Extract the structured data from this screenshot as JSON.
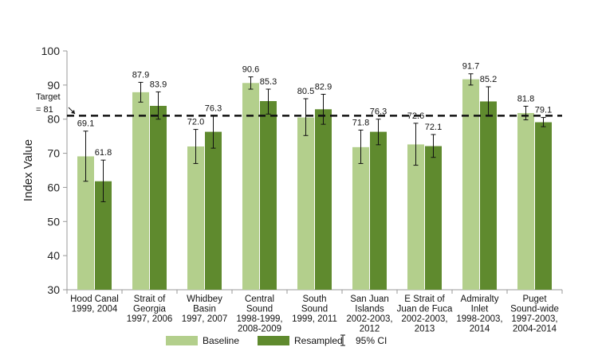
{
  "chart_data": {
    "type": "bar",
    "ylabel": "Index Value",
    "ylim": [
      30,
      100
    ],
    "yticks": [
      30,
      40,
      50,
      60,
      70,
      80,
      90,
      100
    ],
    "categories": [
      [
        "Hood Canal",
        "1999, 2004"
      ],
      [
        "Strait of",
        "Georgia",
        "1997, 2006"
      ],
      [
        "Whidbey",
        "Basin",
        "1997, 2007"
      ],
      [
        "Central",
        "Sound",
        "1998-1999,",
        "2008-2009"
      ],
      [
        "South",
        "Sound",
        "1999, 2011"
      ],
      [
        "San Juan",
        "Islands",
        "2002-2003,",
        "2012"
      ],
      [
        "E Strait of",
        "Juan de Fuca",
        "2002-2003,",
        "2013"
      ],
      [
        "Admiralty",
        "Inlet",
        "1998-2003,",
        "2014"
      ],
      [
        "Puget",
        "Sound-wide",
        "1997-2003,",
        "2004-2014"
      ]
    ],
    "series": [
      {
        "name": "Baseline",
        "color": "#b3cf8c",
        "values": [
          69.1,
          87.9,
          72.0,
          90.6,
          80.5,
          71.8,
          72.6,
          91.7,
          81.8
        ],
        "labels": [
          "69.1",
          "87.9",
          "72.0",
          "90.6",
          "80.5",
          "71.8",
          "72.6",
          "91.7",
          "81.8"
        ],
        "ci": [
          [
            61.8,
            76.5
          ],
          [
            85.0,
            90.8
          ],
          [
            67.0,
            77.0
          ],
          [
            88.8,
            92.4
          ],
          [
            75.2,
            86.0
          ],
          [
            67.0,
            76.8
          ],
          [
            66.5,
            78.8
          ],
          [
            90.0,
            93.3
          ],
          [
            79.8,
            83.8
          ]
        ]
      },
      {
        "name": "Resampled",
        "color": "#5f8a2e",
        "values": [
          61.8,
          83.9,
          76.3,
          85.3,
          82.9,
          76.3,
          72.1,
          85.2,
          79.1
        ],
        "labels": [
          "61.8",
          "83.9",
          "76.3",
          "85.3",
          "82.9",
          "76.3",
          "72.1",
          "85.2",
          "79.1"
        ],
        "ci": [
          [
            55.8,
            68.0
          ],
          [
            80.0,
            88.0
          ],
          [
            71.5,
            81.0
          ],
          [
            81.5,
            88.8
          ],
          [
            78.5,
            87.3
          ],
          [
            72.5,
            80.0
          ],
          [
            68.8,
            75.5
          ],
          [
            81.0,
            89.5
          ],
          [
            77.8,
            80.5
          ]
        ]
      }
    ],
    "target": {
      "value": 81,
      "label_line1": "Target",
      "label_line2": "= 81"
    },
    "legend": {
      "placement": "bottom",
      "ci_label": "95% CI"
    },
    "grid": false
  }
}
